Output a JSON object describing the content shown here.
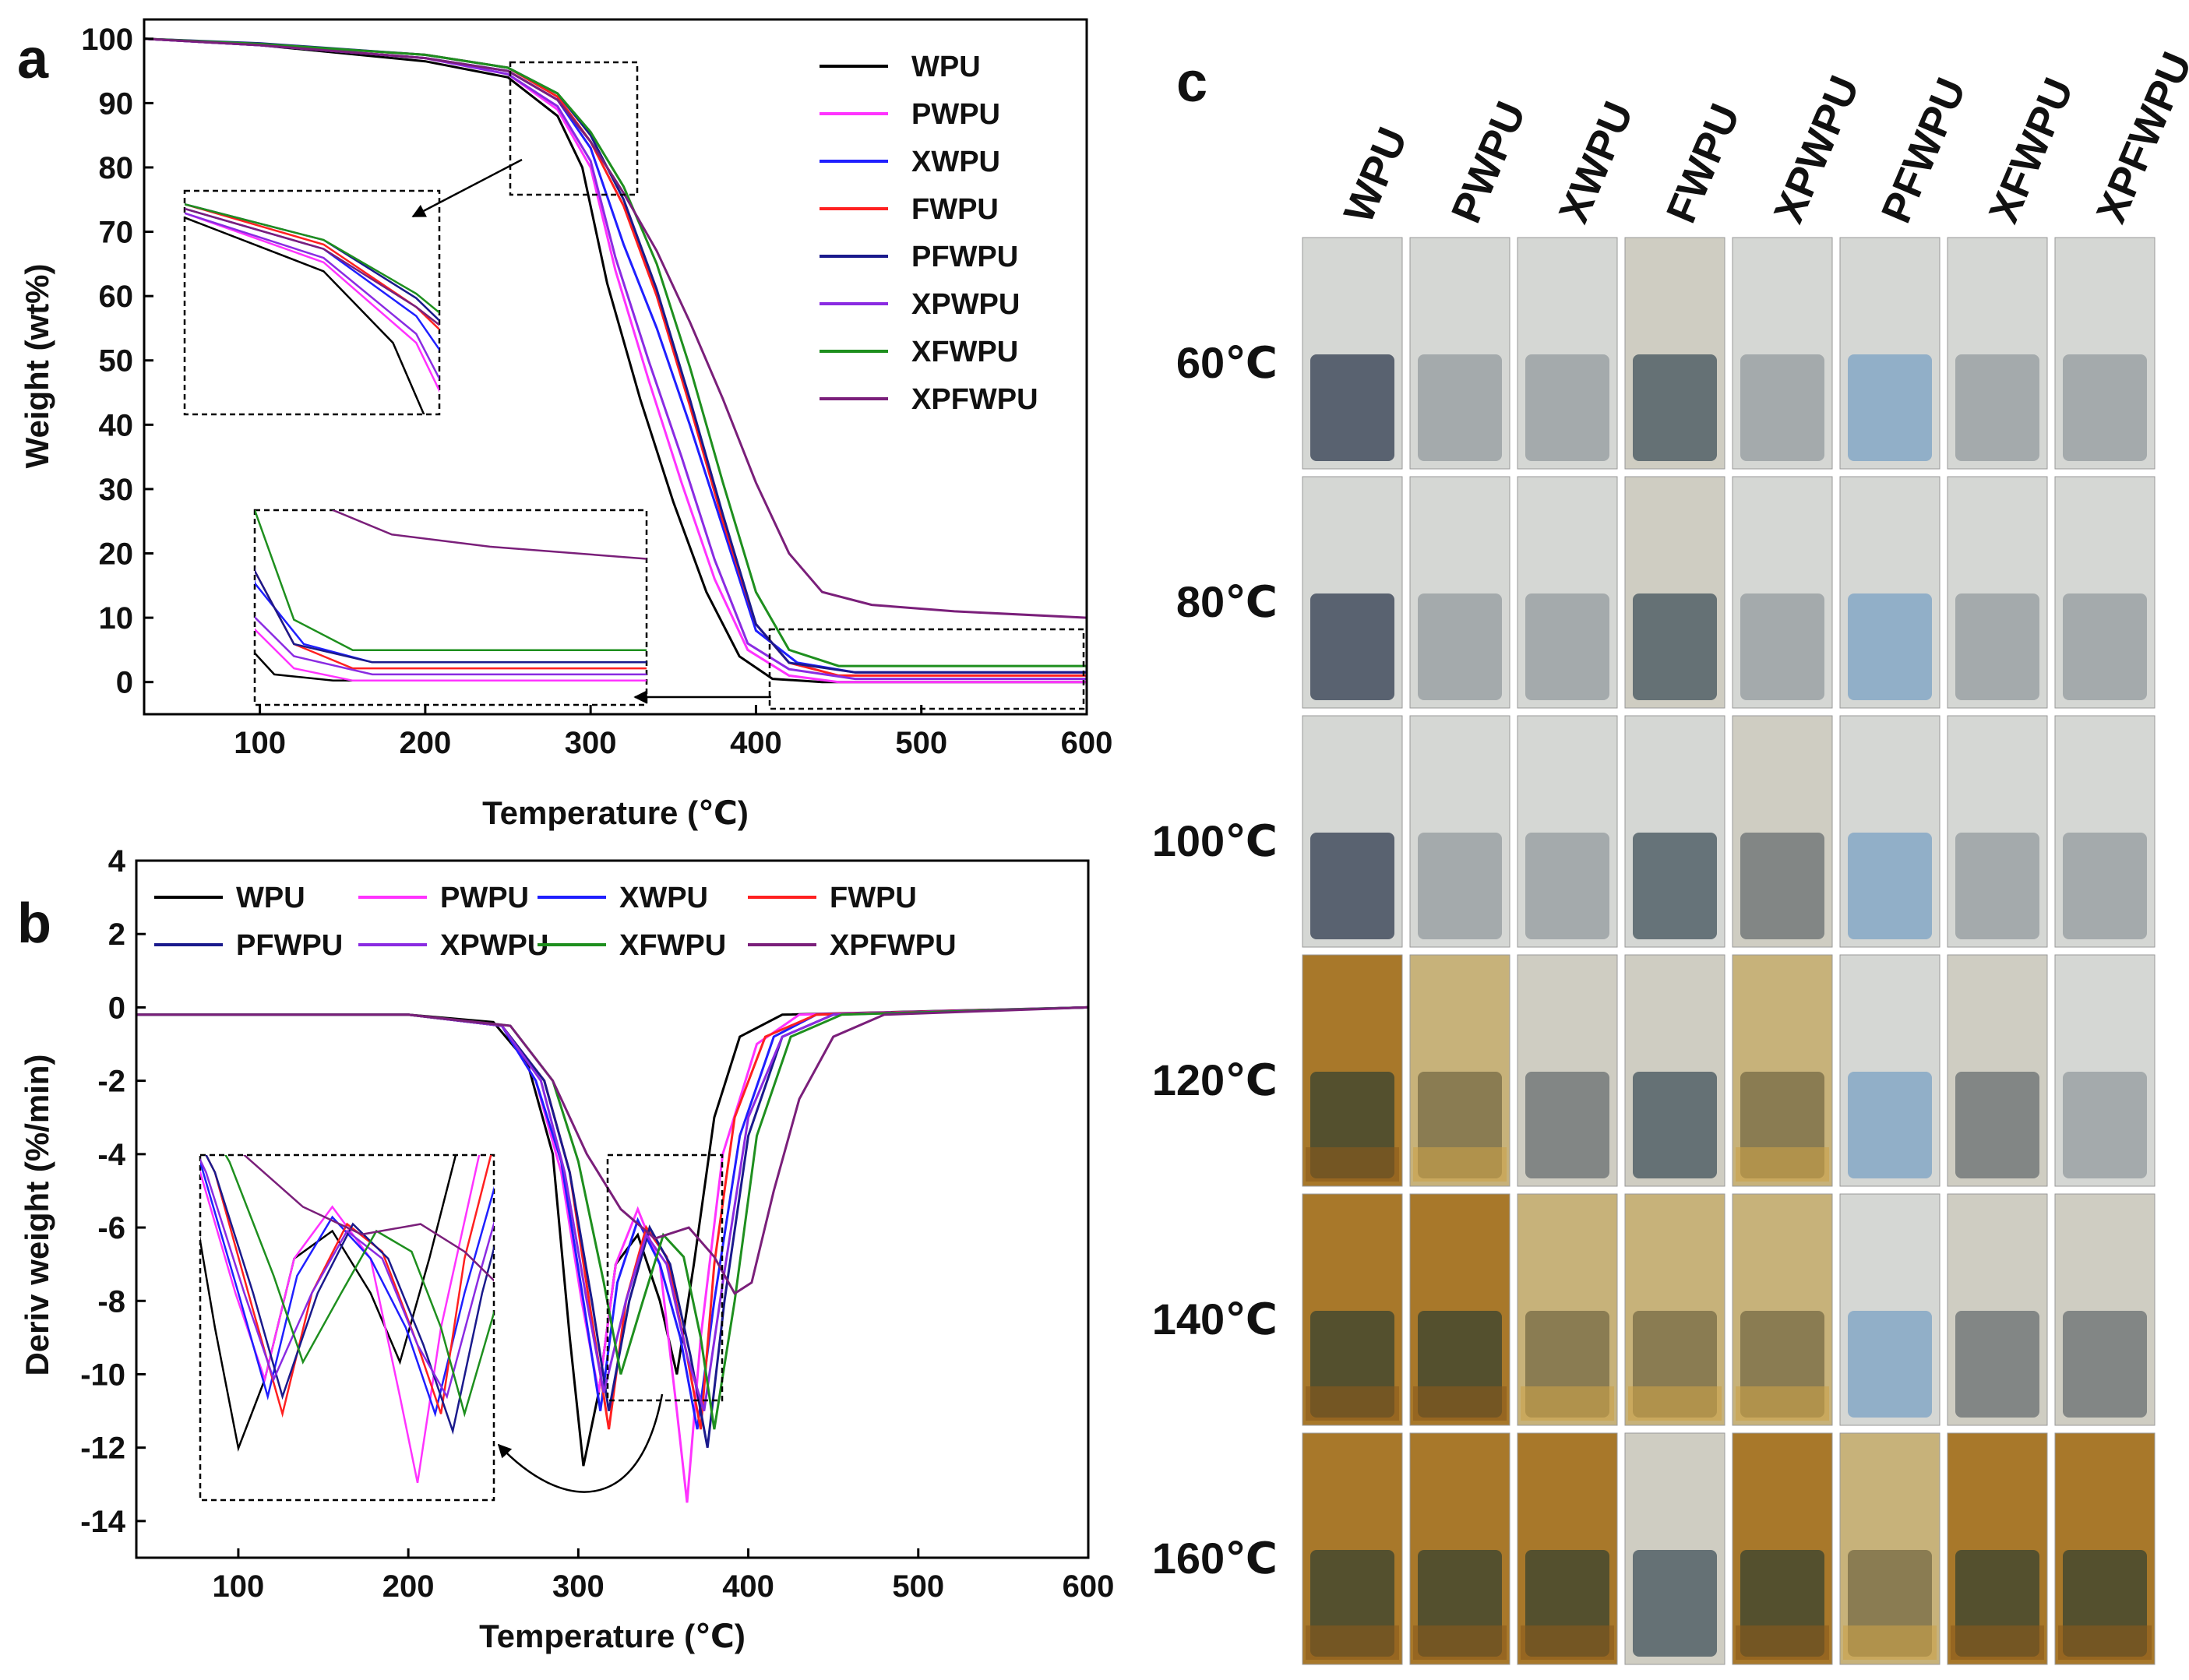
{
  "figure": {
    "panel_a_letter": "a",
    "panel_b_letter": "b",
    "panel_c_letter": "c"
  },
  "colors": {
    "WPU": "#000000",
    "PWPU": "#ff33ff",
    "XWPU": "#1f1fff",
    "FWPU": "#ff2020",
    "PFWPU": "#1a1a8c",
    "XPWPU": "#8a2be2",
    "XFWPU": "#1e8f1e",
    "XPFWPU": "#7a1f7a"
  },
  "chart_data": [
    {
      "id": "tga",
      "type": "line",
      "title": "",
      "xlabel": "Temperature (℃)",
      "ylabel": "Weight (wt%)",
      "xlim": [
        30,
        600
      ],
      "ylim": [
        -5,
        103
      ],
      "xticks": [
        100,
        200,
        300,
        400,
        500,
        600
      ],
      "yticks": [
        0,
        10,
        20,
        30,
        40,
        50,
        60,
        70,
        80,
        90,
        100
      ],
      "legend": [
        "WPU",
        "PWPU",
        "XWPU",
        "FWPU",
        "PFWPU",
        "XPWPU",
        "XFWPU",
        "XPFWPU"
      ],
      "legend_position": "top-right",
      "series": [
        {
          "name": "WPU",
          "x": [
            30,
            100,
            200,
            250,
            280,
            295,
            310,
            330,
            350,
            370,
            390,
            410,
            440,
            600
          ],
          "y": [
            100,
            99,
            96.5,
            94,
            88,
            80,
            62,
            44,
            28,
            14,
            4,
            0.5,
            0,
            0
          ]
        },
        {
          "name": "PWPU",
          "x": [
            30,
            100,
            200,
            250,
            280,
            300,
            315,
            335,
            355,
            375,
            395,
            420,
            450,
            600
          ],
          "y": [
            100,
            99,
            97,
            94.5,
            89,
            80,
            64,
            47,
            31,
            16,
            5,
            1,
            0,
            0
          ]
        },
        {
          "name": "XWPU",
          "x": [
            30,
            100,
            200,
            250,
            280,
            300,
            320,
            340,
            360,
            380,
            400,
            425,
            460,
            600
          ],
          "y": [
            100,
            99,
            97,
            95,
            90.5,
            83,
            68,
            55,
            40,
            24,
            8,
            3,
            1.5,
            1.5
          ]
        },
        {
          "name": "FWPU",
          "x": [
            30,
            100,
            200,
            250,
            280,
            300,
            320,
            340,
            360,
            380,
            400,
            420,
            450,
            600
          ],
          "y": [
            100,
            99.2,
            97.5,
            95.5,
            91,
            84,
            74,
            60,
            43,
            25,
            9,
            3,
            1,
            1
          ]
        },
        {
          "name": "PFWPU",
          "x": [
            30,
            100,
            200,
            250,
            280,
            300,
            320,
            340,
            360,
            380,
            400,
            420,
            460,
            600
          ],
          "y": [
            100,
            99.3,
            97.5,
            95.5,
            91.5,
            85,
            75,
            61,
            44,
            26,
            9,
            3,
            1.5,
            1.5
          ]
        },
        {
          "name": "XPWPU",
          "x": [
            30,
            100,
            200,
            250,
            280,
            300,
            315,
            335,
            355,
            375,
            395,
            420,
            460,
            600
          ],
          "y": [
            100,
            99,
            97,
            94.5,
            89.5,
            81,
            66,
            50,
            35,
            19,
            6,
            2,
            0.5,
            0.5
          ]
        },
        {
          "name": "XFWPU",
          "x": [
            30,
            100,
            200,
            250,
            280,
            300,
            320,
            340,
            360,
            380,
            400,
            420,
            450,
            600
          ],
          "y": [
            100,
            99.2,
            97.5,
            95.5,
            91.5,
            85.5,
            77,
            65,
            49,
            31,
            14,
            5,
            2.5,
            2.5
          ]
        },
        {
          "name": "XPFWPU",
          "x": [
            30,
            100,
            200,
            250,
            280,
            300,
            320,
            340,
            360,
            380,
            400,
            420,
            440,
            470,
            520,
            600
          ],
          "y": [
            100,
            99,
            97,
            95,
            90.5,
            84,
            76,
            67,
            56,
            44,
            31,
            20,
            14,
            12,
            11,
            10
          ]
        }
      ]
    },
    {
      "id": "dtg",
      "type": "line",
      "title": "",
      "xlabel": "Temperature (℃)",
      "ylabel": "Deriv weight (%/min)",
      "xlim": [
        40,
        600
      ],
      "ylim": [
        -15,
        4
      ],
      "xticks": [
        100,
        200,
        300,
        400,
        500,
        600
      ],
      "yticks": [
        -14,
        -12,
        -10,
        -8,
        -6,
        -4,
        -2,
        0,
        2,
        4
      ],
      "legend": [
        "WPU",
        "PWPU",
        "XWPU",
        "FWPU",
        "PFWPU",
        "XPWPU",
        "XFWPU",
        "XPFWPU"
      ],
      "legend_position": "top",
      "series": [
        {
          "name": "WPU",
          "x": [
            40,
            200,
            250,
            270,
            285,
            295,
            303,
            312,
            322,
            335,
            348,
            358,
            368,
            380,
            395,
            420,
            600
          ],
          "y": [
            -0.2,
            -0.2,
            -0.4,
            -1.5,
            -4,
            -9,
            -12.5,
            -10.5,
            -7,
            -6.2,
            -8,
            -10,
            -7,
            -3,
            -0.8,
            -0.2,
            0
          ]
        },
        {
          "name": "PWPU",
          "x": [
            40,
            200,
            255,
            275,
            290,
            302,
            312,
            322,
            335,
            348,
            358,
            364,
            372,
            385,
            405,
            430,
            600
          ],
          "y": [
            -0.2,
            -0.2,
            -0.5,
            -2,
            -4.5,
            -8,
            -10.5,
            -7,
            -5.5,
            -7,
            -11,
            -13.5,
            -9,
            -4,
            -1,
            -0.2,
            0
          ]
        },
        {
          "name": "XWPU",
          "x": [
            40,
            200,
            255,
            275,
            290,
            303,
            313,
            323,
            335,
            348,
            360,
            370,
            380,
            395,
            415,
            440,
            600
          ],
          "y": [
            -0.2,
            -0.2,
            -0.5,
            -2,
            -4.2,
            -8,
            -11,
            -7.5,
            -5.8,
            -7,
            -9,
            -11.5,
            -8,
            -3.5,
            -0.8,
            -0.2,
            0
          ]
        },
        {
          "name": "FWPU",
          "x": [
            40,
            200,
            255,
            280,
            295,
            308,
            318,
            328,
            340,
            352,
            364,
            372,
            380,
            392,
            410,
            440,
            600
          ],
          "y": [
            -0.2,
            -0.2,
            -0.5,
            -2,
            -4.5,
            -8.5,
            -11.5,
            -8,
            -6,
            -6.8,
            -9.5,
            -11.5,
            -7,
            -3,
            -0.8,
            -0.2,
            0
          ]
        },
        {
          "name": "PFWPU",
          "x": [
            40,
            200,
            255,
            280,
            295,
            308,
            318,
            330,
            342,
            354,
            366,
            376,
            386,
            400,
            420,
            450,
            600
          ],
          "y": [
            -0.2,
            -0.2,
            -0.5,
            -2,
            -4.5,
            -8,
            -11,
            -8,
            -6,
            -7,
            -9.5,
            -12,
            -8,
            -3.5,
            -0.8,
            -0.2,
            0
          ]
        },
        {
          "name": "XPWPU",
          "x": [
            40,
            200,
            255,
            278,
            292,
            305,
            315,
            328,
            340,
            352,
            364,
            374,
            385,
            400,
            420,
            450,
            600
          ],
          "y": [
            -0.2,
            -0.2,
            -0.5,
            -2,
            -4.5,
            -8,
            -10.5,
            -8,
            -6.2,
            -7,
            -9.5,
            -11,
            -7.5,
            -3,
            -0.8,
            -0.2,
            0
          ]
        },
        {
          "name": "XFWPU",
          "x": [
            40,
            200,
            260,
            285,
            300,
            315,
            325,
            338,
            350,
            362,
            372,
            380,
            392,
            405,
            425,
            455,
            600
          ],
          "y": [
            -0.2,
            -0.2,
            -0.5,
            -2,
            -4.2,
            -7.5,
            -10,
            -8,
            -6.2,
            -6.8,
            -9,
            -11.5,
            -8,
            -3.5,
            -0.8,
            -0.2,
            0
          ]
        },
        {
          "name": "XPFWPU",
          "x": [
            40,
            200,
            260,
            285,
            305,
            325,
            345,
            365,
            380,
            392,
            402,
            415,
            430,
            450,
            480,
            600
          ],
          "y": [
            -0.2,
            -0.2,
            -0.5,
            -2,
            -4,
            -5.5,
            -6.3,
            -6,
            -6.8,
            -7.8,
            -7.5,
            -5,
            -2.5,
            -0.8,
            -0.2,
            0
          ]
        }
      ]
    }
  ],
  "panel_c": {
    "columns": [
      "WPU",
      "PWPU",
      "XWPU",
      "FWPU",
      "XPWPU",
      "PFWPU",
      "XFWPU",
      "XPFWPU"
    ],
    "rows": [
      "60℃",
      "80℃",
      "100℃",
      "120℃",
      "140℃",
      "160℃"
    ]
  }
}
